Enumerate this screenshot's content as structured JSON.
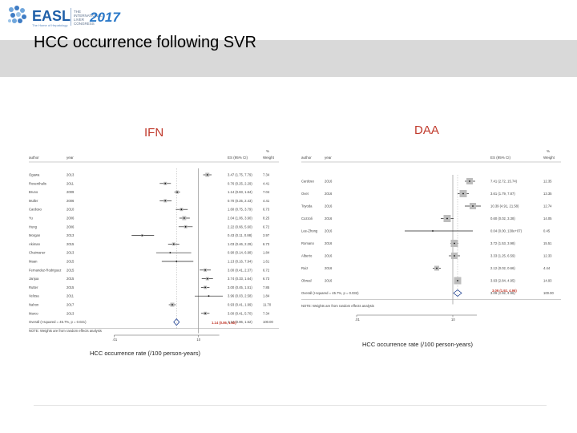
{
  "header": {
    "logo_text": "EASL",
    "logo_subtitle": "The Home of Hepatology",
    "congress_text": "THE INTERNATIONAL LIVER CONGRESS",
    "congress_year": "2017",
    "title": "HCC occurrence following SVR"
  },
  "colors": {
    "accent": "#c0392b",
    "band": "#d9d9d9",
    "brand": "#1f5fa8"
  },
  "chart_data": [
    {
      "type": "forest",
      "panel_label": "IFN",
      "xlabel": "HCC occurrence rate (/100 person-years)",
      "columns": {
        "author": "author",
        "year": "year",
        "es": "ES (95% CI)",
        "weight_line1": "%",
        "weight_line2": "Weight"
      },
      "x_ticks": [
        ".01",
        "10"
      ],
      "studies": [
        {
          "author": "Ogawa",
          "year": "2013",
          "es_text": "3.47 (1.75, 7.79)",
          "weight": "7.34",
          "point": 0.78,
          "lo": 0.72,
          "hi": 0.84,
          "box": 5
        },
        {
          "author": "Rosenthalis",
          "year": "2011",
          "es_text": "0.76 (0.25, 2.29)",
          "weight": "4.41",
          "point": 0.18,
          "lo": 0.1,
          "hi": 0.26,
          "box": 4
        },
        {
          "author": "Bruno",
          "year": "2009",
          "es_text": "1.14 (0.83, 1.64)",
          "weight": "7.04",
          "point": 0.35,
          "lo": 0.31,
          "hi": 0.39,
          "box": 4
        },
        {
          "author": "Muller",
          "year": "2006",
          "es_text": "0.70 (0.25, 2.43)",
          "weight": "4.41",
          "point": 0.18,
          "lo": 0.1,
          "hi": 0.27,
          "box": 4
        },
        {
          "author": "Cardoso",
          "year": "2010",
          "es_text": "1.60 (0.75, 3.79)",
          "weight": "6.73",
          "point": 0.41,
          "lo": 0.33,
          "hi": 0.5,
          "box": 4
        },
        {
          "author": "Yu",
          "year": "2006",
          "es_text": "2.04 (1.06, 3.90)",
          "weight": "8.25",
          "point": 0.45,
          "lo": 0.38,
          "hi": 0.53,
          "box": 5
        },
        {
          "author": "Hung",
          "year": "2006",
          "es_text": "2.22 (0.66, 5.60)",
          "weight": "6.72",
          "point": 0.47,
          "lo": 0.37,
          "hi": 0.57,
          "box": 4
        },
        {
          "author": "Morgan",
          "year": "2013",
          "es_text": "0.43 (0.11, 0.88)",
          "weight": "3.97",
          "point": -0.15,
          "lo": -0.3,
          "hi": 0.02,
          "box": 3
        },
        {
          "author": "Akiman",
          "year": "2015",
          "es_text": "1.03 (0.46, 2.29)",
          "weight": "6.73",
          "point": 0.3,
          "lo": 0.22,
          "hi": 0.38,
          "box": 4
        },
        {
          "author": "Chaimaner",
          "year": "2013",
          "es_text": "0.90 (0.14, 6.98)",
          "weight": "1.84",
          "point": 0.25,
          "lo": 0.05,
          "hi": 0.55,
          "box": 2
        },
        {
          "author": "Maan",
          "year": "2015",
          "es_text": "1.13 (0.16, 7.94)",
          "weight": "1.61",
          "point": 0.34,
          "lo": 0.13,
          "hi": 0.58,
          "box": 2
        },
        {
          "author": "Fernandez-Rodriguez",
          "year": "2015",
          "es_text": "3.00 (0.41, 2.37)",
          "weight": "6.72",
          "point": 0.75,
          "lo": 0.67,
          "hi": 0.83,
          "box": 4
        },
        {
          "author": "Janjua",
          "year": "2015",
          "es_text": "3.74 (0.33, 1.64)",
          "weight": "6.73",
          "point": 0.78,
          "lo": 0.7,
          "hi": 0.86,
          "box": 4
        },
        {
          "author": "Rutter",
          "year": "2015",
          "es_text": "3.00 (0.45, 1.51)",
          "weight": "7.85",
          "point": 0.75,
          "lo": 0.69,
          "hi": 0.81,
          "box": 4
        },
        {
          "author": "Velosa",
          "year": "2011",
          "es_text": "3.96 (0.03, 2.58)",
          "weight": "1.84",
          "point": 0.8,
          "lo": 0.6,
          "hi": 1.0,
          "box": 2
        },
        {
          "author": "Nahon",
          "year": "2017",
          "es_text": "0.93 (0.41, 1.99)",
          "weight": "11.70",
          "point": 0.28,
          "lo": 0.23,
          "hi": 0.33,
          "box": 5
        },
        {
          "author": "Marco",
          "year": "2013",
          "es_text": "3.00 (0.41, 5.70)",
          "weight": "7.34",
          "point": 0.75,
          "lo": 0.69,
          "hi": 0.81,
          "box": 4
        }
      ],
      "overall": {
        "label": "Overall (I-squared = 45.7%, p = 0.021)",
        "es_text": "1.14 (0.86, 1.52)",
        "weight": "100.00",
        "point": 0.34,
        "lo": 0.3,
        "hi": 0.38
      },
      "note": "NOTE: Weights are from random effects analysis",
      "result_label": "1.14 (0.86, 1.52)"
    },
    {
      "type": "forest",
      "panel_label": "DAA",
      "xlabel": "HCC occurrence rate (/100 person-years)",
      "columns": {
        "author": "author",
        "year": "year",
        "es": "ES (95% CI)",
        "weight_line1": "%",
        "weight_line2": "Weight"
      },
      "x_ticks": [
        ".01",
        "10"
      ],
      "studies": [
        {
          "author": "Cardoso",
          "year": "2016",
          "es_text": "7.41 (2.72, 15.74)",
          "weight": "12.35",
          "point": 0.86,
          "lo": 0.8,
          "hi": 0.93,
          "box": 8
        },
        {
          "author": "Ovet",
          "year": "2016",
          "es_text": "3.61 (1.79, 7.87)",
          "weight": "13.35",
          "point": 0.78,
          "lo": 0.71,
          "hi": 0.85,
          "box": 9
        },
        {
          "author": "Toyoda",
          "year": "2016",
          "es_text": "10.39 (4.91, 21.58)",
          "weight": "12.74",
          "point": 0.9,
          "lo": 0.8,
          "hi": 1.0,
          "box": 8
        },
        {
          "author": "Cozzoli",
          "year": "2016",
          "es_text": "0.60 (0.02, 3.38)",
          "weight": "14.05",
          "point": 0.58,
          "lo": 0.5,
          "hi": 0.66,
          "box": 9
        },
        {
          "author": "Lee-Zhong",
          "year": "2016",
          "es_text": "0.04 (0.00, 130e+07)",
          "weight": "0.45",
          "point": 0.4,
          "lo": 0.05,
          "hi": 0.9,
          "box": 2
        },
        {
          "author": "Romano",
          "year": "2016",
          "es_text": "3.72 (1.53, 3.98)",
          "weight": "15.51",
          "point": 0.67,
          "lo": 0.62,
          "hi": 0.72,
          "box": 9
        },
        {
          "author": "Alberto",
          "year": "2016",
          "es_text": "3.33 (1.25, 6.59)",
          "weight": "12.33",
          "point": 0.67,
          "lo": 0.6,
          "hi": 0.74,
          "box": 8
        },
        {
          "author": "Ruiz",
          "year": "2016",
          "es_text": "2.12 (0.02, 0.66)",
          "weight": "4.44",
          "point": 0.45,
          "lo": 0.4,
          "hi": 0.5,
          "box": 6
        },
        {
          "author": "Obreal",
          "year": "2016",
          "es_text": "3.93 (2.84, 4.95)",
          "weight": "14.93",
          "point": 0.71,
          "lo": 0.68,
          "hi": 0.74,
          "box": 9
        }
      ],
      "overall": {
        "label": "Overall (I-squared = 45.7%, p = 0.032)",
        "es_text": "3.09 (1.92, 4.96)",
        "weight": "100.00",
        "point": 0.71,
        "lo": 0.66,
        "hi": 0.76
      },
      "note": "NOTE: Weights are from random effects analysis",
      "result_label": "3.09 (1.92, 4.96)"
    }
  ]
}
